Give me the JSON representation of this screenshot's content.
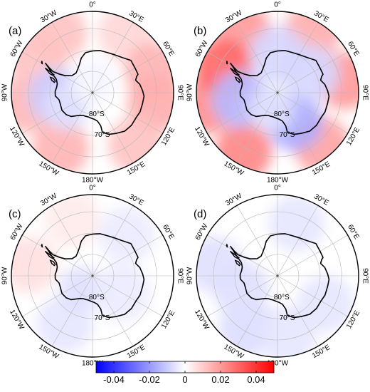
{
  "panels": [
    {
      "label": "(a)",
      "fields": [
        {
          "lon": -30,
          "lat": -58,
          "value": 0.012
        },
        {
          "lon": 30,
          "lat": -58,
          "value": 0.008
        },
        {
          "lon": 70,
          "lat": -60,
          "value": 0.015
        },
        {
          "lon": 100,
          "lat": -60,
          "value": 0.016
        },
        {
          "lon": 140,
          "lat": -58,
          "value": 0.012
        },
        {
          "lon": -150,
          "lat": -60,
          "value": 0.015
        },
        {
          "lon": -100,
          "lat": -58,
          "value": 0.014
        },
        {
          "lon": -60,
          "lat": -60,
          "value": 0.012
        },
        {
          "lon": -95,
          "lat": -73,
          "value": -0.01
        },
        {
          "lon": -120,
          "lat": -76,
          "value": -0.006
        },
        {
          "lon": 0,
          "lat": -85,
          "value": -0.002
        }
      ]
    },
    {
      "label": "(b)",
      "fields": [
        {
          "lon": -30,
          "lat": -58,
          "value": 0.02
        },
        {
          "lon": 30,
          "lat": -58,
          "value": 0.016
        },
        {
          "lon": 80,
          "lat": -58,
          "value": 0.02
        },
        {
          "lon": 140,
          "lat": -58,
          "value": 0.018
        },
        {
          "lon": -150,
          "lat": -58,
          "value": 0.024
        },
        {
          "lon": -100,
          "lat": -57,
          "value": 0.022
        },
        {
          "lon": -65,
          "lat": -62,
          "value": 0.03
        },
        {
          "lon": -100,
          "lat": -72,
          "value": -0.014
        },
        {
          "lon": 150,
          "lat": -74,
          "value": -0.016
        },
        {
          "lon": 60,
          "lat": -72,
          "value": -0.008
        },
        {
          "lon": 0,
          "lat": -72,
          "value": -0.008
        },
        {
          "lon": -160,
          "lat": -82,
          "value": -0.006
        }
      ]
    },
    {
      "label": "(c)",
      "fields": [
        {
          "lon": -80,
          "lat": -60,
          "value": 0.006
        },
        {
          "lon": -150,
          "lat": -64,
          "value": -0.005
        },
        {
          "lon": 40,
          "lat": -65,
          "value": -0.004
        },
        {
          "lon": -140,
          "lat": -82,
          "value": -0.006
        },
        {
          "lon": 120,
          "lat": -74,
          "value": -0.004
        },
        {
          "lon": -20,
          "lat": -62,
          "value": 0.004
        }
      ]
    },
    {
      "label": "(d)",
      "fields": [
        {
          "lon": -80,
          "lat": -60,
          "value": -0.006
        },
        {
          "lon": -150,
          "lat": -62,
          "value": -0.007
        },
        {
          "lon": -110,
          "lat": -72,
          "value": -0.006
        },
        {
          "lon": 20,
          "lat": -64,
          "value": -0.005
        },
        {
          "lon": 120,
          "lat": -64,
          "value": -0.005
        },
        {
          "lon": 170,
          "lat": -62,
          "value": -0.005
        }
      ]
    }
  ],
  "map": {
    "boundary_latitude": -52,
    "parallels": [
      -80,
      -70,
      -60
    ],
    "parallel_labels": [
      {
        "lat": -80,
        "text": "80°S"
      },
      {
        "lat": -70,
        "text": "70°S"
      }
    ],
    "meridian_labels": [
      {
        "lon": 0,
        "text": "0°"
      },
      {
        "lon": 30,
        "text": "30°E"
      },
      {
        "lon": 60,
        "text": "60°E"
      },
      {
        "lon": 90,
        "text": "90°E"
      },
      {
        "lon": 120,
        "text": "120°E"
      },
      {
        "lon": 150,
        "text": "150°E"
      },
      {
        "lon": 180,
        "text": "180°W"
      },
      {
        "lon": -150,
        "text": "150°W"
      },
      {
        "lon": -120,
        "text": "120°W"
      },
      {
        "lon": -90,
        "text": "90°W"
      },
      {
        "lon": -60,
        "text": "60°W"
      },
      {
        "lon": -30,
        "text": "30°W"
      }
    ],
    "coastline": [
      [
        -58,
        -64
      ],
      [
        -60,
        -66
      ],
      [
        -63,
        -68
      ],
      [
        -66,
        -70
      ],
      [
        -70,
        -72
      ],
      [
        -76,
        -73
      ],
      [
        -82,
        -73
      ],
      [
        -88,
        -72.5
      ],
      [
        -95,
        -72.5
      ],
      [
        -102,
        -74
      ],
      [
        -110,
        -74
      ],
      [
        -120,
        -73.5
      ],
      [
        -130,
        -74
      ],
      [
        -138,
        -75
      ],
      [
        -146,
        -77
      ],
      [
        -152,
        -78
      ],
      [
        -158,
        -78.5
      ],
      [
        -164,
        -78.5
      ],
      [
        -170,
        -78.5
      ],
      [
        -178,
        -78
      ],
      [
        176,
        -77.5
      ],
      [
        170,
        -76.5
      ],
      [
        166,
        -74
      ],
      [
        166,
        -71
      ],
      [
        162,
        -70
      ],
      [
        158,
        -69
      ],
      [
        150,
        -68
      ],
      [
        140,
        -66.5
      ],
      [
        130,
        -66.2
      ],
      [
        120,
        -66.5
      ],
      [
        112,
        -66
      ],
      [
        102,
        -66
      ],
      [
        94,
        -65.8
      ],
      [
        88,
        -66.5
      ],
      [
        80,
        -67.5
      ],
      [
        74,
        -69
      ],
      [
        70,
        -68
      ],
      [
        68,
        -67
      ],
      [
        60,
        -67
      ],
      [
        50,
        -66.5
      ],
      [
        40,
        -68.5
      ],
      [
        30,
        -69.5
      ],
      [
        20,
        -70
      ],
      [
        10,
        -70
      ],
      [
        0,
        -70.5
      ],
      [
        -10,
        -71
      ],
      [
        -18,
        -73
      ],
      [
        -25,
        -75.5
      ],
      [
        -32,
        -77
      ],
      [
        -40,
        -78
      ],
      [
        -50,
        -77.5
      ],
      [
        -58,
        -75
      ],
      [
        -61,
        -72
      ],
      [
        -62,
        -69
      ],
      [
        -60,
        -66.5
      ],
      [
        -58,
        -64
      ]
    ],
    "islands": [
      [
        [
          -62.5,
          -65
        ],
        [
          -64,
          -66.5
        ],
        [
          -66,
          -68
        ],
        [
          -66.5,
          -69.5
        ],
        [
          -65,
          -70
        ],
        [
          -63.5,
          -67.5
        ],
        [
          -62.5,
          -65
        ]
      ],
      [
        [
          -70,
          -69
        ],
        [
          -73,
          -70
        ],
        [
          -75,
          -71.5
        ],
        [
          -73,
          -71.8
        ],
        [
          -70,
          -70.5
        ],
        [
          -70,
          -69
        ]
      ],
      [
        [
          -58,
          -62
        ],
        [
          -59,
          -62.5
        ],
        [
          -60.5,
          -63
        ],
        [
          -59.5,
          -62.3
        ],
        [
          -58,
          -62
        ]
      ]
    ]
  },
  "colorbar": {
    "min": -0.05,
    "max": 0.05,
    "ticks": [
      {
        "value": -0.04,
        "label": "-0.04"
      },
      {
        "value": -0.02,
        "label": "-0.02"
      },
      {
        "value": 0,
        "label": "0"
      },
      {
        "value": 0.02,
        "label": "0.02"
      },
      {
        "value": 0.04,
        "label": "0.04"
      }
    ],
    "colors": {
      "low": "#0000ff",
      "mid": "#ffffff",
      "high": "#ff0000"
    }
  }
}
